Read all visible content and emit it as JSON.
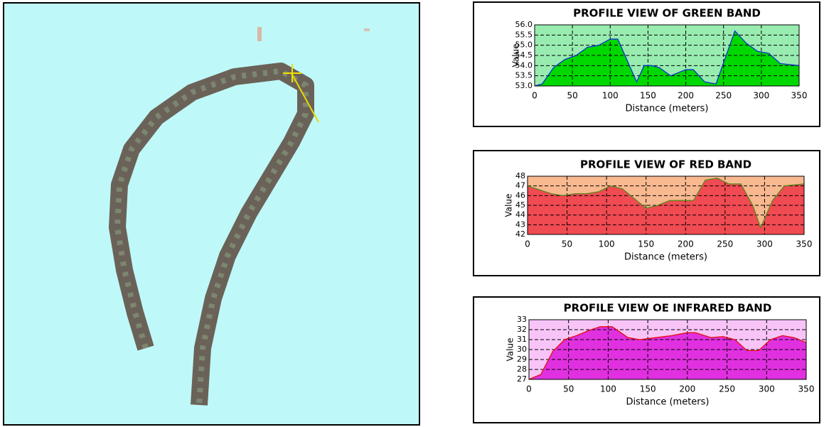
{
  "chart_data": [
    {
      "type": "area",
      "title": "PROFILE VIEW OF GREEN BAND",
      "y_label": "Value",
      "x_label": "Distance (meters)",
      "x": [
        0,
        10,
        25,
        40,
        55,
        70,
        85,
        100,
        110,
        135,
        145,
        155,
        165,
        180,
        200,
        210,
        225,
        240,
        265,
        280,
        295,
        310,
        325,
        350
      ],
      "values": [
        53.0,
        53.1,
        53.9,
        54.3,
        54.5,
        54.9,
        55.0,
        55.3,
        55.3,
        53.2,
        54.0,
        54.0,
        53.9,
        53.5,
        53.8,
        53.8,
        53.2,
        53.1,
        55.7,
        55.1,
        54.7,
        54.6,
        54.1,
        54.0
      ],
      "xlim": [
        0,
        350
      ],
      "xticks": [
        0,
        50,
        100,
        150,
        200,
        250,
        300,
        350
      ],
      "ylim": [
        53,
        56
      ],
      "yticks": [
        {
          "value": 53,
          "label": "53.0"
        },
        53.5,
        {
          "value": 54,
          "label": "54.0"
        },
        54.5,
        {
          "value": 55,
          "label": "55.0"
        },
        55.5,
        {
          "value": 56,
          "label": "56.0"
        }
      ],
      "grid": true,
      "color": "#00d800",
      "line_color": "#1030d0",
      "background": "#98ecb0"
    },
    {
      "type": "area",
      "title": "PROFILE VIEW OF RED BAND",
      "y_label": "Value",
      "x_label": "Distance (meters)",
      "x": [
        0,
        15,
        30,
        45,
        60,
        75,
        90,
        105,
        120,
        135,
        150,
        165,
        180,
        195,
        210,
        225,
        240,
        255,
        270,
        285,
        295,
        310,
        325,
        350
      ],
      "values": [
        47.0,
        46.6,
        46.2,
        46.0,
        46.2,
        46.2,
        46.4,
        47.0,
        46.7,
        45.7,
        44.7,
        45.0,
        45.5,
        45.5,
        45.5,
        47.6,
        47.8,
        47.2,
        47.2,
        45.0,
        42.7,
        45.5,
        47.0,
        47.2
      ],
      "xlim": [
        0,
        350
      ],
      "xticks": [
        0,
        50,
        100,
        150,
        200,
        250,
        300,
        350
      ],
      "ylim": [
        42,
        48
      ],
      "yticks": [
        42,
        43,
        44,
        45,
        46,
        47,
        48
      ],
      "grid": true,
      "color": "#f04a52",
      "line_color": "#5a8a1a",
      "background": "#f8b890"
    },
    {
      "type": "area",
      "title": "PROFILE VIEW OE INFRARED BAND",
      "y_label": "Value",
      "x_label": "Distance (meters)",
      "x": [
        0,
        15,
        30,
        45,
        60,
        75,
        90,
        105,
        125,
        140,
        160,
        180,
        200,
        210,
        230,
        245,
        260,
        275,
        290,
        305,
        320,
        335,
        350
      ],
      "values": [
        27.0,
        27.5,
        29.8,
        31.0,
        31.4,
        31.9,
        32.3,
        32.3,
        31.2,
        31.0,
        31.2,
        31.4,
        31.7,
        31.7,
        31.2,
        31.3,
        31.0,
        29.9,
        29.9,
        31.0,
        31.4,
        31.2,
        30.7
      ],
      "xlim": [
        0,
        350
      ],
      "xticks": [
        0,
        50,
        100,
        150,
        200,
        250,
        300,
        350
      ],
      "ylim": [
        27,
        33
      ],
      "yticks": [
        27,
        28,
        29,
        30,
        31,
        32,
        33
      ],
      "grid": true,
      "color": "#e030e0",
      "line_color": "#e81010",
      "background": "#f8c4f8"
    }
  ]
}
